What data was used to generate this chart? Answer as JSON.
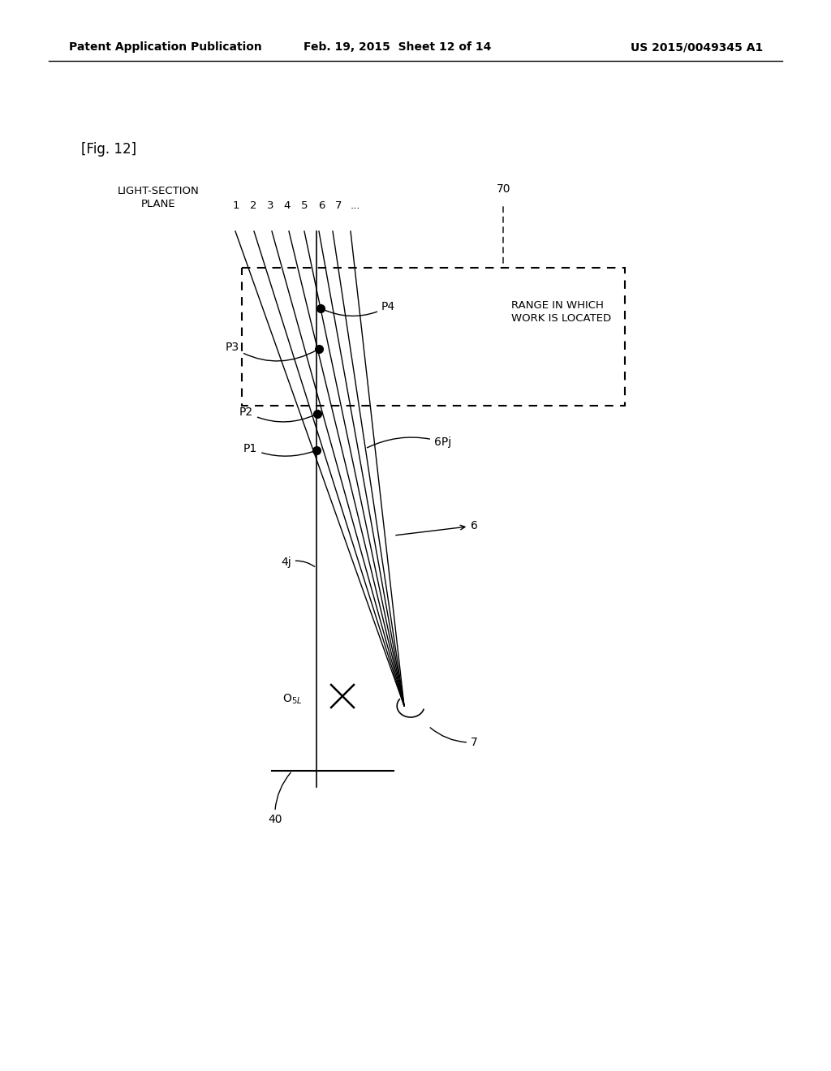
{
  "background_color": "#ffffff",
  "header_left": "Patent Application Publication",
  "header_center": "Feb. 19, 2015  Sheet 12 of 14",
  "header_right": "US 2015/0049345 A1",
  "fig_label": "[Fig. 12]",
  "light_section_label": "LIGHT-SECTION\nPLANE",
  "plane_numbers": [
    "1",
    "2",
    "3",
    "4",
    "5",
    "6",
    "7",
    "..."
  ],
  "label_70": "70",
  "label_range": "RANGE IN WHICH\nWORK IS LOCATED",
  "label_P1": "P1",
  "label_P2": "P2",
  "label_P3": "P3",
  "label_P4": "P4",
  "label_6Pj": "6Pj",
  "label_6": "6",
  "label_4j": "4j",
  "label_O5L": "O5L",
  "label_7": "7",
  "label_40": "40"
}
